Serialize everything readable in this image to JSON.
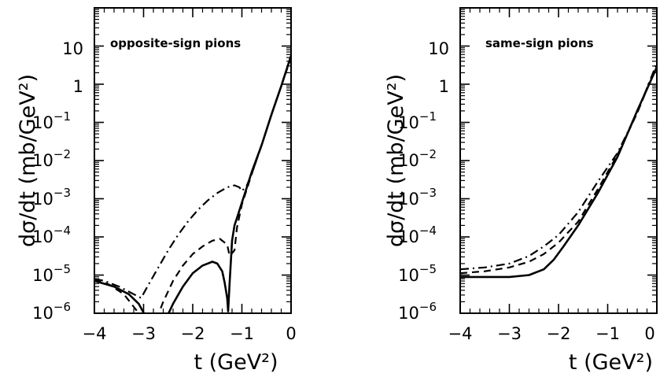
{
  "chart_data": [
    {
      "type": "line",
      "annotation": "opposite-sign pions",
      "xlabel": "t (GeV²)",
      "ylabel": "dσ/dt  (mb/GeV²)",
      "xlim": [
        -4,
        0
      ],
      "ylim_log10": [
        -6,
        2
      ],
      "yscale": "log",
      "x_ticks": [
        "−4",
        "−3",
        "−2",
        "−1",
        "0"
      ],
      "y_ticks": [
        {
          "base": "10",
          "exp": "−6"
        },
        {
          "base": "10",
          "exp": "−5"
        },
        {
          "base": "10",
          "exp": "−4"
        },
        {
          "base": "10",
          "exp": "−3"
        },
        {
          "base": "10",
          "exp": "−2"
        },
        {
          "base": "10",
          "exp": "−1"
        },
        {
          "base": "1",
          "exp": ""
        },
        {
          "base": "10",
          "exp": ""
        }
      ],
      "series": [
        {
          "style": "solid",
          "x": [
            -4.0,
            -3.6,
            -3.3,
            -3.1,
            -2.95,
            -2.8,
            -2.6,
            -2.4,
            -2.2,
            -2.0,
            -1.8,
            -1.6,
            -1.5,
            -1.4,
            -1.35,
            -1.3,
            -1.28,
            -1.25,
            -1.2,
            -1.15,
            -1.1,
            -1.0,
            -0.9,
            -0.8,
            -0.6,
            -0.4,
            -0.2,
            0.0
          ],
          "log10_y": [
            -5.15,
            -5.3,
            -5.5,
            -5.75,
            -6.1,
            -6.6,
            -6.3,
            -5.75,
            -5.3,
            -4.95,
            -4.75,
            -4.65,
            -4.7,
            -4.9,
            -5.2,
            -5.6,
            -5.95,
            -5.2,
            -4.1,
            -3.7,
            -3.5,
            -3.1,
            -2.7,
            -2.3,
            -1.6,
            -0.8,
            -0.05,
            0.75
          ]
        },
        {
          "style": "dashed",
          "x": [
            -4.0,
            -3.7,
            -3.4,
            -3.1,
            -2.9,
            -2.75,
            -2.6,
            -2.4,
            -2.2,
            -2.0,
            -1.8,
            -1.6,
            -1.45,
            -1.3,
            -1.25,
            -1.15,
            -1.1,
            -1.0,
            -0.9,
            -0.8,
            -0.6,
            -0.4,
            -0.2,
            0.0
          ],
          "log10_y": [
            -5.1,
            -5.25,
            -5.5,
            -6.0,
            -6.5,
            -6.2,
            -5.7,
            -5.15,
            -4.75,
            -4.45,
            -4.25,
            -4.1,
            -4.05,
            -4.2,
            -4.5,
            -4.35,
            -3.75,
            -3.15,
            -2.75,
            -2.35,
            -1.6,
            -0.8,
            -0.05,
            0.7
          ]
        },
        {
          "style": "dashdot",
          "x": [
            -4.0,
            -3.8,
            -3.5,
            -3.2,
            -3.05,
            -2.9,
            -2.7,
            -2.5,
            -2.3,
            -2.1,
            -1.9,
            -1.7,
            -1.5,
            -1.3,
            -1.15,
            -1.05,
            -1.0,
            -0.9,
            -0.8,
            -0.6,
            -0.4,
            -0.2,
            0.0
          ],
          "log10_y": [
            -5.1,
            -5.15,
            -5.3,
            -5.5,
            -5.6,
            -5.25,
            -4.8,
            -4.35,
            -3.95,
            -3.6,
            -3.3,
            -3.05,
            -2.85,
            -2.7,
            -2.65,
            -2.7,
            -2.8,
            -2.65,
            -2.35,
            -1.6,
            -0.8,
            -0.05,
            0.75
          ]
        }
      ]
    },
    {
      "type": "line",
      "annotation": "same-sign pions",
      "xlabel": "t (GeV²)",
      "ylabel": "dσ/dt  (mb/GeV²)",
      "xlim": [
        -4,
        0
      ],
      "ylim_log10": [
        -6,
        2
      ],
      "yscale": "log",
      "x_ticks": [
        "−4",
        "−3",
        "−2",
        "−1",
        "0"
      ],
      "y_ticks": [
        {
          "base": "10",
          "exp": "−6"
        },
        {
          "base": "10",
          "exp": "−5"
        },
        {
          "base": "10",
          "exp": "−4"
        },
        {
          "base": "10",
          "exp": "−3"
        },
        {
          "base": "10",
          "exp": "−2"
        },
        {
          "base": "10",
          "exp": "−1"
        },
        {
          "base": "1",
          "exp": ""
        },
        {
          "base": "10",
          "exp": ""
        }
      ],
      "series": [
        {
          "style": "solid",
          "x": [
            -4.0,
            -3.5,
            -3.0,
            -2.6,
            -2.3,
            -2.1,
            -1.9,
            -1.6,
            -1.2,
            -0.8,
            -0.4,
            0.0
          ],
          "log10_y": [
            -5.05,
            -5.05,
            -5.05,
            -5.0,
            -4.85,
            -4.6,
            -4.25,
            -3.7,
            -2.85,
            -1.9,
            -0.7,
            0.45
          ]
        },
        {
          "style": "dashed",
          "x": [
            -4.0,
            -3.5,
            -3.0,
            -2.6,
            -2.3,
            -2.0,
            -1.6,
            -1.2,
            -0.8,
            -0.4,
            0.0
          ],
          "log10_y": [
            -4.95,
            -4.9,
            -4.8,
            -4.65,
            -4.45,
            -4.15,
            -3.6,
            -2.75,
            -1.85,
            -0.75,
            0.5
          ]
        },
        {
          "style": "dashdot",
          "x": [
            -4.0,
            -3.5,
            -3.0,
            -2.6,
            -2.3,
            -2.0,
            -1.6,
            -1.2,
            -0.8,
            -0.4,
            0.0
          ],
          "log10_y": [
            -4.85,
            -4.8,
            -4.7,
            -4.5,
            -4.25,
            -3.95,
            -3.35,
            -2.55,
            -1.8,
            -0.75,
            0.55
          ]
        }
      ]
    }
  ]
}
